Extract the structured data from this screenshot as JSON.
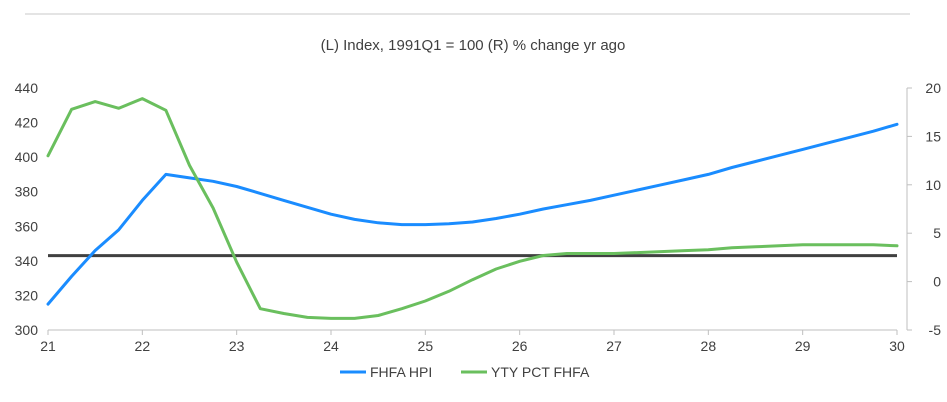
{
  "chart_data": {
    "type": "line",
    "title": "(L) Index, 1991Q1 = 100 (R) % change yr ago",
    "x_ticks": [
      "21",
      "22",
      "23",
      "24",
      "25",
      "26",
      "27",
      "28",
      "29",
      "30"
    ],
    "xlim": [
      21,
      30
    ],
    "y_left": {
      "ylim": [
        300,
        440
      ],
      "ticks": [
        "300",
        "320",
        "340",
        "360",
        "380",
        "400",
        "420",
        "440"
      ]
    },
    "y_right": {
      "ylim": [
        -5,
        20
      ],
      "ticks": [
        "-5",
        "0",
        "5",
        "10",
        "15",
        "20"
      ]
    },
    "reference_line": {
      "axis": "left",
      "value": 343,
      "color": "#404040"
    },
    "series": [
      {
        "name": "FHFA HPI",
        "axis": "left",
        "color": "#1a8cff",
        "x": [
          21.0,
          21.25,
          21.5,
          21.75,
          22.0,
          22.25,
          22.5,
          22.75,
          23.0,
          23.25,
          23.5,
          23.75,
          24.0,
          24.25,
          24.5,
          24.75,
          25.0,
          25.25,
          25.5,
          25.75,
          26.0,
          26.25,
          26.5,
          26.75,
          27.0,
          27.25,
          27.5,
          27.75,
          28.0,
          28.25,
          28.5,
          28.75,
          29.0,
          29.25,
          29.5,
          29.75,
          30.0
        ],
        "values": [
          315,
          331,
          346,
          358,
          375,
          390,
          388,
          386,
          383,
          379,
          375,
          371,
          367,
          364,
          362,
          361,
          361,
          361.5,
          362.5,
          364.5,
          367,
          370,
          372.5,
          375,
          378,
          381,
          384,
          387,
          390,
          394,
          397.5,
          401,
          404.5,
          408,
          411.5,
          415,
          419
        ]
      },
      {
        "name": "YTY PCT FHFA",
        "axis": "right",
        "color": "#6abf5e",
        "x": [
          21.0,
          21.25,
          21.5,
          21.75,
          22.0,
          22.25,
          22.5,
          22.75,
          23.0,
          23.25,
          23.5,
          23.75,
          24.0,
          24.25,
          24.5,
          24.75,
          25.0,
          25.25,
          25.5,
          25.75,
          26.0,
          26.25,
          26.5,
          26.75,
          27.0,
          27.25,
          27.5,
          27.75,
          28.0,
          28.25,
          28.5,
          28.75,
          29.0,
          29.25,
          29.5,
          29.75,
          30.0
        ],
        "values": [
          13,
          17.8,
          18.6,
          17.9,
          18.9,
          17.7,
          12,
          7.6,
          2,
          -2.8,
          -3.3,
          -3.7,
          -3.8,
          -3.8,
          -3.5,
          -2.8,
          -2,
          -1,
          0.2,
          1.3,
          2.1,
          2.7,
          2.9,
          2.9,
          2.9,
          3,
          3.1,
          3.2,
          3.3,
          3.5,
          3.6,
          3.7,
          3.8,
          3.8,
          3.8,
          3.8,
          3.7
        ]
      }
    ],
    "legend": {
      "position": "bottom"
    },
    "grid": false
  }
}
